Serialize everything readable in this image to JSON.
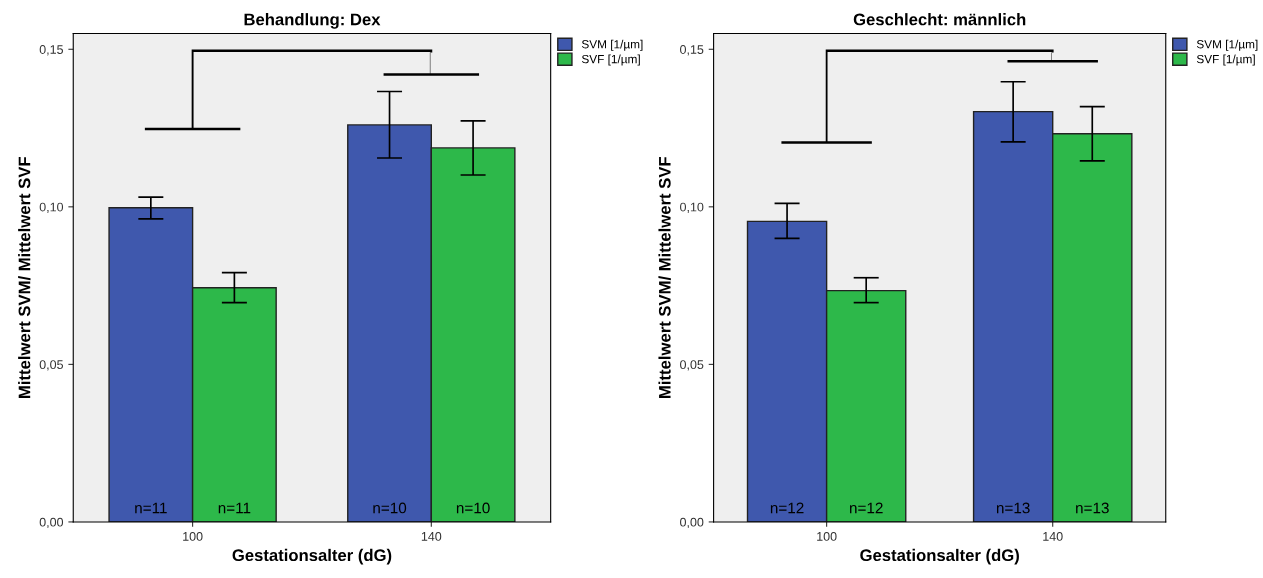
{
  "chart_data": [
    {
      "type": "bar",
      "title": "Behandlung: Dex",
      "xlabel": "Gestationsalter (dG)",
      "ylabel": "Mittelwert SVM/ Mittelwert SVF",
      "categories": [
        "100",
        "140"
      ],
      "ylim": [
        0,
        0.155
      ],
      "yticks": [
        {
          "value": 0,
          "label": "0,00"
        },
        {
          "value": 0.05,
          "label": "0,05"
        },
        {
          "value": 0.1,
          "label": "0,10"
        },
        {
          "value": 0.15,
          "label": "0,15"
        }
      ],
      "legend": "top right",
      "grid": false,
      "annotations": [
        "n=11",
        "n=11",
        "n=10",
        "n=10"
      ],
      "series": [
        {
          "name": "SVM [1/µm]",
          "color": "#3f58ad",
          "values": [
            0.0997,
            0.126
          ],
          "errors": [
            [
              0.0962,
              0.1031
            ],
            [
              0.1155,
              0.1366
            ]
          ]
        },
        {
          "name": "SVF [1/µm]",
          "color": "#2db84a",
          "values": [
            0.0743,
            0.1187
          ],
          "errors": [
            [
              0.0696,
              0.0791
            ],
            [
              0.1101,
              0.1273
            ]
          ]
        }
      ]
    },
    {
      "type": "bar",
      "title": "Geschlecht: männlich",
      "xlabel": "Gestationsalter (dG)",
      "ylabel": "Mittelwert SVM/ Mittelwert SVF",
      "categories": [
        "100",
        "140"
      ],
      "ylim": [
        0,
        0.155
      ],
      "yticks": [
        {
          "value": 0,
          "label": "0,00"
        },
        {
          "value": 0.05,
          "label": "0,05"
        },
        {
          "value": 0.1,
          "label": "0,10"
        },
        {
          "value": 0.15,
          "label": "0,15"
        }
      ],
      "legend": "top right",
      "grid": false,
      "annotations": [
        "n=12",
        "n=12",
        "n=13",
        "n=13"
      ],
      "series": [
        {
          "name": "SVM [1/µm]",
          "color": "#3f58ad",
          "values": [
            0.0954,
            0.1302
          ],
          "errors": [
            [
              0.09,
              0.1011
            ],
            [
              0.1206,
              0.1397
            ]
          ]
        },
        {
          "name": "SVF [1/µm]",
          "color": "#2db84a",
          "values": [
            0.0734,
            0.1232
          ],
          "errors": [
            [
              0.0696,
              0.0775
            ],
            [
              0.1146,
              0.1318
            ]
          ]
        }
      ]
    }
  ]
}
